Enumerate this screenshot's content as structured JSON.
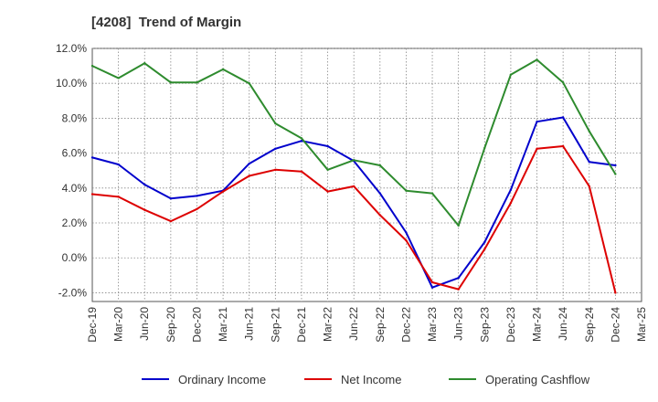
{
  "chart_data": {
    "type": "line",
    "title": "[4208]  Trend of Margin",
    "x_ticks": [
      "Dec-19",
      "Mar-20",
      "Jun-20",
      "Sep-20",
      "Dec-20",
      "Mar-21",
      "Jun-21",
      "Sep-21",
      "Dec-21",
      "Mar-22",
      "Jun-22",
      "Sep-22",
      "Dec-22",
      "Mar-23",
      "Jun-23",
      "Sep-23",
      "Dec-23",
      "Mar-24",
      "Jun-24",
      "Sep-24",
      "Dec-24",
      "Mar-25"
    ],
    "categories": [
      "Dec-19",
      "Mar-20",
      "Jun-20",
      "Sep-20",
      "Dec-20",
      "Mar-21",
      "Jun-21",
      "Sep-21",
      "Dec-21",
      "Mar-22",
      "Jun-22",
      "Sep-22",
      "Dec-22",
      "Mar-23",
      "Jun-23",
      "Sep-23",
      "Dec-23",
      "Mar-24",
      "Jun-24",
      "Sep-24",
      "Dec-24"
    ],
    "y_ticks": [
      "12.0%",
      "10.0%",
      "8.0%",
      "6.0%",
      "4.0%",
      "2.0%",
      "0.0%",
      "-2.0%"
    ],
    "ylim": [
      -2.5,
      12.0
    ],
    "grid": true,
    "legend_position": "bottom",
    "series": [
      {
        "name": "Ordinary Income",
        "color": "#0000cc",
        "values": [
          5.75,
          5.35,
          4.2,
          3.4,
          3.55,
          3.85,
          5.4,
          6.25,
          6.7,
          6.4,
          5.55,
          3.7,
          1.45,
          -1.7,
          -1.15,
          0.9,
          3.9,
          7.8,
          8.05,
          5.5,
          5.3
        ]
      },
      {
        "name": "Net Income",
        "color": "#dd0000",
        "values": [
          3.65,
          3.5,
          2.75,
          2.1,
          2.8,
          3.8,
          4.7,
          5.05,
          4.95,
          3.8,
          4.1,
          2.45,
          1.0,
          -1.4,
          -1.8,
          0.5,
          3.15,
          6.25,
          6.4,
          4.1,
          -2.0
        ]
      },
      {
        "name": "Operating Cashflow",
        "color": "#2e8b2e",
        "values": [
          11.0,
          10.3,
          11.15,
          10.05,
          10.05,
          10.8,
          10.0,
          7.7,
          6.85,
          5.05,
          5.6,
          5.3,
          3.85,
          3.7,
          1.85,
          6.3,
          10.5,
          11.35,
          10.05,
          7.25,
          4.8
        ]
      }
    ]
  }
}
